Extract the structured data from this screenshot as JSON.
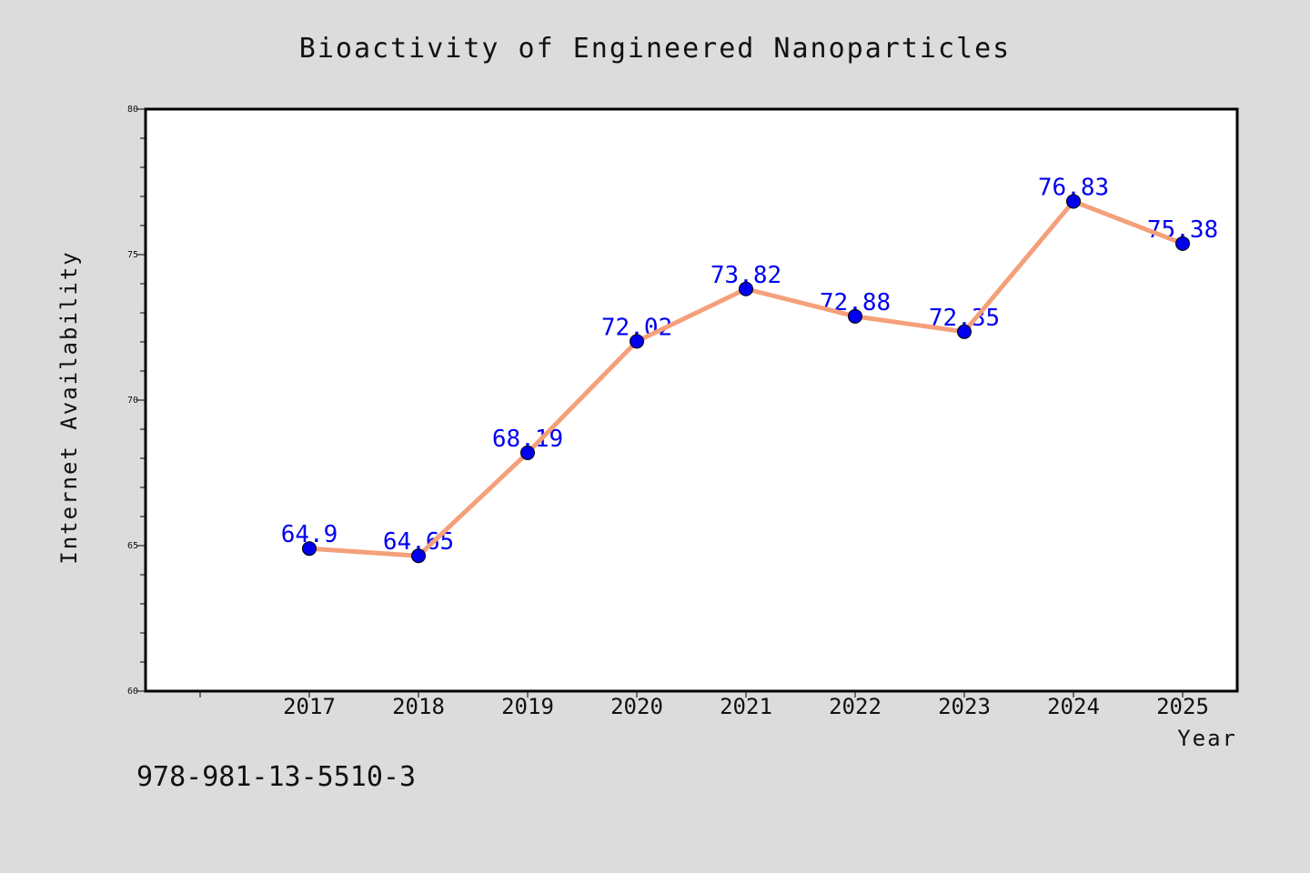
{
  "colors": {
    "background": "#dcdcdc",
    "plot_background": "#ffffff",
    "frame": "#000000",
    "line": "#f4a07a",
    "marker": "#0000ee",
    "data_label": "#0000ee"
  },
  "footer": {
    "isbn": "978-981-13-5510-3"
  },
  "chart_data": {
    "type": "line",
    "title": "Bioactivity of Engineered Nanoparticles",
    "xlabel": "Year",
    "ylabel": "Internet Availability",
    "x": [
      "2017",
      "2018",
      "2019",
      "2020",
      "2021",
      "2022",
      "2023",
      "2024",
      "2025"
    ],
    "values": [
      64.9,
      64.65,
      68.19,
      72.02,
      73.82,
      72.88,
      72.35,
      76.83,
      75.38
    ],
    "data_labels": [
      "64.9",
      "64.65",
      "68.19",
      "72.02",
      "73.82",
      "72.88",
      "72.35",
      "76.83",
      "75.38"
    ],
    "ylim": [
      60,
      80
    ],
    "yticks": [
      "60",
      "65",
      "70",
      "75",
      "80"
    ],
    "grid": false,
    "legend": "none"
  }
}
